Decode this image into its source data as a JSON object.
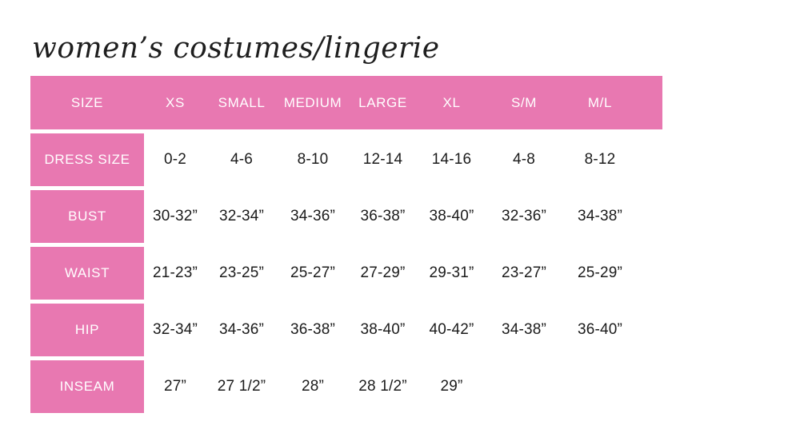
{
  "title": "women’s costumes/lingerie",
  "colors": {
    "accent_pink": "#e878b1",
    "header_text": "#ffffff",
    "body_text": "#1b1b1b",
    "background": "#ffffff"
  },
  "chart_data": {
    "type": "table",
    "title": "women’s costumes/lingerie",
    "columns": [
      "SIZE",
      "XS",
      "SMALL",
      "MEDIUM",
      "LARGE",
      "XL",
      "S/M",
      "M/L"
    ],
    "rows": [
      {
        "label": "DRESS SIZE",
        "values": [
          "0-2",
          "4-6",
          "8-10",
          "12-14",
          "14-16",
          "4-8",
          "8-12"
        ]
      },
      {
        "label": "BUST",
        "values": [
          "30-32”",
          "32-34”",
          "34-36”",
          "36-38”",
          "38-40”",
          "32-36”",
          "34-38”"
        ]
      },
      {
        "label": "WAIST",
        "values": [
          "21-23”",
          "23-25”",
          "25-27”",
          "27-29”",
          "29-31”",
          "23-27”",
          "25-29”"
        ]
      },
      {
        "label": "HIP",
        "values": [
          "32-34”",
          "34-36”",
          "36-38”",
          "38-40”",
          "40-42”",
          "34-38”",
          "36-40”"
        ]
      },
      {
        "label": "INSEAM",
        "values": [
          "27”",
          "27 1/2”",
          "28”",
          "28 1/2”",
          "29”",
          "",
          ""
        ]
      }
    ]
  }
}
